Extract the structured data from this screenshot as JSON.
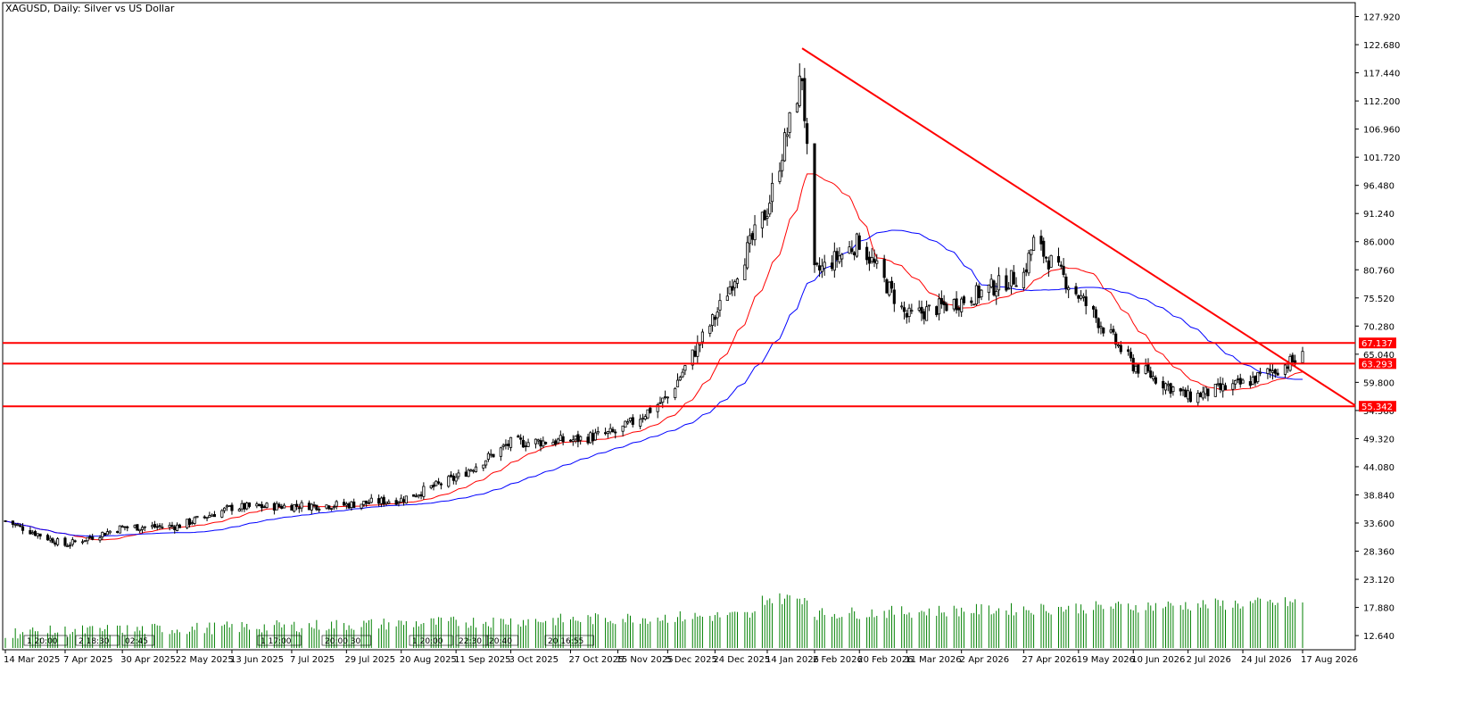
{
  "window": {
    "title": "XAGUSD, Daily:  Silver vs US Dollar"
  },
  "chart_data": {
    "type": "candlestick",
    "symbol": "XAGUSD",
    "timeframe": "Daily",
    "description": "Silver vs US Dollar",
    "y_axis": {
      "ticks": [
        "127.920",
        "122.680",
        "117.440",
        "112.200",
        "106.960",
        "101.720",
        "96.480",
        "91.240",
        "86.000",
        "80.760",
        "75.520",
        "70.280",
        "65.040",
        "59.800",
        "54.560",
        "49.320",
        "44.080",
        "38.840",
        "33.600",
        "28.360",
        "23.120",
        "17.880",
        "12.640"
      ],
      "range": [
        10.0,
        130.5
      ]
    },
    "x_axis": {
      "ticks": [
        "14 Mar 2025",
        "7 Apr 2025",
        "30 Apr 2025",
        "22 May 2025",
        "13 Jun 2025",
        "7 Jul 2025",
        "29 Jul 2025",
        "20 Aug 2025",
        "11 Sep 2025",
        "3 Oct 2025",
        "27 Oct 2025",
        "15 Nov 2025",
        "5 Dec 2025",
        "24 Dec 2025",
        "14 Jan 2026",
        "2 Feb 2026",
        "20 Feb 2026",
        "11 Mar 2026",
        "2 Apr 2026",
        "27 Apr 2026",
        "19 May 2026",
        "10 Jun 2026",
        "2 Jul 2026",
        "24 Jul 2026",
        "17 Aug 2026"
      ]
    },
    "price_anchors": [
      [
        "14 Mar 2025",
        34.0
      ],
      [
        "7 Apr 2025",
        29.5
      ],
      [
        "30 Apr 2025",
        32.8
      ],
      [
        "22 May 2025",
        33.0
      ],
      [
        "13 Jun 2025",
        36.5
      ],
      [
        "7 Jul 2025",
        36.8
      ],
      [
        "29 Jul 2025",
        37.0
      ],
      [
        "20 Aug 2025",
        38.0
      ],
      [
        "11 Sep 2025",
        42.0
      ],
      [
        "3 Oct 2025",
        48.5
      ],
      [
        "27 Oct 2025",
        49.0
      ],
      [
        "15 Nov 2025",
        50.5
      ],
      [
        "5 Dec 2025",
        57.0
      ],
      [
        "24 Dec 2025",
        72.0
      ],
      [
        "14 Jan 2026",
        92.0
      ],
      [
        "28 Jan 2026",
        117.0
      ],
      [
        "2 Feb 2026",
        80.0
      ],
      [
        "20 Feb 2026",
        86.0
      ],
      [
        "11 Mar 2026",
        72.0
      ],
      [
        "2 Apr 2026",
        75.0
      ],
      [
        "27 Apr 2026",
        80.0
      ],
      [
        "1 May 2026",
        86.0
      ],
      [
        "19 May 2026",
        76.0
      ],
      [
        "10 Jun 2026",
        63.0
      ],
      [
        "2 Jul 2026",
        57.0
      ],
      [
        "24 Jul 2026",
        59.5
      ],
      [
        "17 Aug 2026",
        64.5
      ]
    ],
    "volume_labels": [
      "1 20:00",
      "2 18:30",
      "02:45",
      "1 17:00",
      "20:00 30",
      "1 20:00",
      "22:30",
      "20:40",
      "20 16:55"
    ],
    "horizontal_lines": [
      {
        "price": 67.137,
        "label": "67.137",
        "color": "#ff0000"
      },
      {
        "price": 63.293,
        "label": "63.293",
        "color": "#ff0000"
      },
      {
        "price": 55.342,
        "label": "55.342",
        "color": "#ff0000"
      }
    ],
    "trendline": {
      "from": [
        "28 Jan 2026",
        122.0
      ],
      "to": [
        "17 Aug 2026",
        55.5
      ],
      "color": "#ff0000"
    },
    "moving_averages": [
      {
        "color": "#ff0000"
      },
      {
        "color": "#0000ff"
      }
    ],
    "grid": false,
    "colors": {
      "background": "#ffffff",
      "candle_up": "#ffffff",
      "candle_down": "#000000",
      "volume": "#008000",
      "axis": "#000000"
    }
  }
}
